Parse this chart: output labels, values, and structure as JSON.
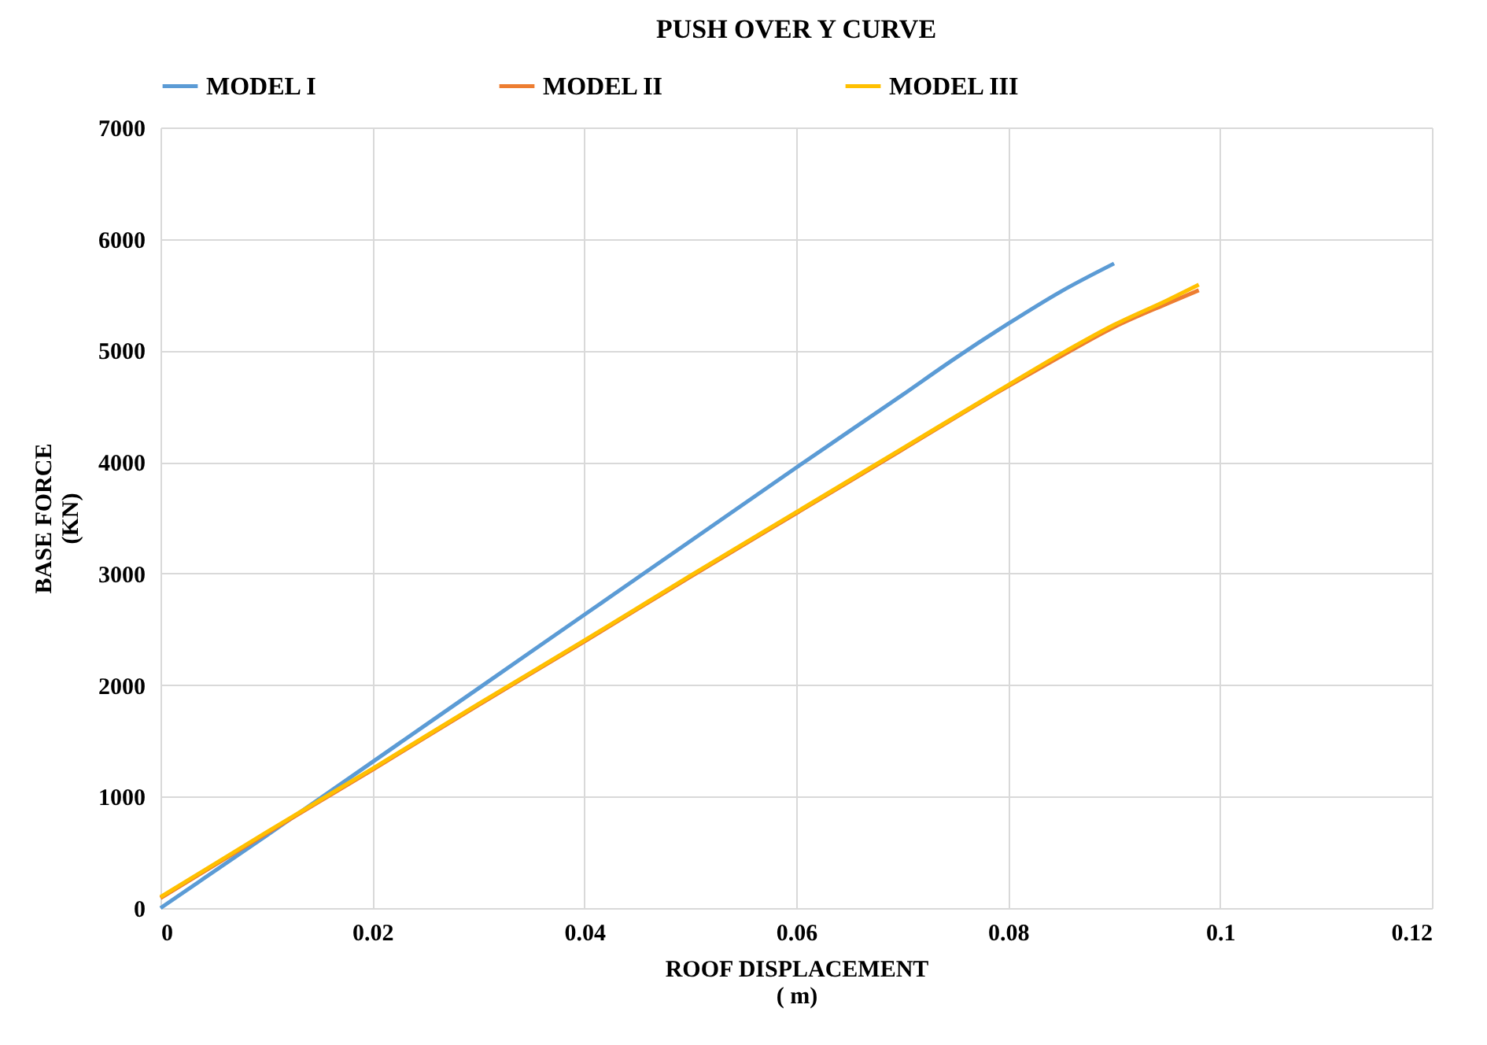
{
  "chart_data": {
    "type": "line",
    "title": "PUSH OVER Y CURVE",
    "xlabel": "ROOF DISPLACEMENT\n( m)",
    "ylabel": "BASE FORCE\n(KN)",
    "x": [
      0,
      0.01,
      0.02,
      0.03,
      0.04,
      0.05,
      0.06,
      0.07,
      0.075,
      0.08,
      0.085,
      0.09
    ],
    "series": [
      {
        "name": "MODEL I",
        "color": "#5b9bd5",
        "values": [
          0,
          650,
          1310,
          1970,
          2630,
          3290,
          3950,
          4600,
          4930,
          5240,
          5530,
          5780
        ]
      },
      {
        "name": "MODEL II",
        "color": "#ed7d31",
        "x": [
          0,
          0.01,
          0.02,
          0.03,
          0.04,
          0.05,
          0.06,
          0.07,
          0.08,
          0.085,
          0.09,
          0.095,
          0.098
        ],
        "values": [
          90,
          670,
          1240,
          1820,
          2390,
          2970,
          3540,
          4110,
          4680,
          4950,
          5210,
          5420,
          5540
        ]
      },
      {
        "name": "MODEL III",
        "color": "#ffc000",
        "x": [
          0,
          0.01,
          0.02,
          0.03,
          0.04,
          0.05,
          0.06,
          0.07,
          0.08,
          0.085,
          0.09,
          0.095,
          0.098
        ],
        "values": [
          100,
          680,
          1250,
          1830,
          2400,
          2980,
          3550,
          4120,
          4690,
          4970,
          5230,
          5450,
          5590
        ]
      }
    ],
    "xlim": [
      0,
      0.12
    ],
    "xticks": [
      0,
      0.02,
      0.04,
      0.06,
      0.08,
      0.1,
      0.12
    ],
    "ylim": [
      0,
      7000
    ],
    "yticks": [
      0,
      1000,
      2000,
      3000,
      4000,
      5000,
      6000,
      7000
    ],
    "grid": true,
    "legend": "top",
    "marker": "none",
    "line_style": "solid"
  }
}
